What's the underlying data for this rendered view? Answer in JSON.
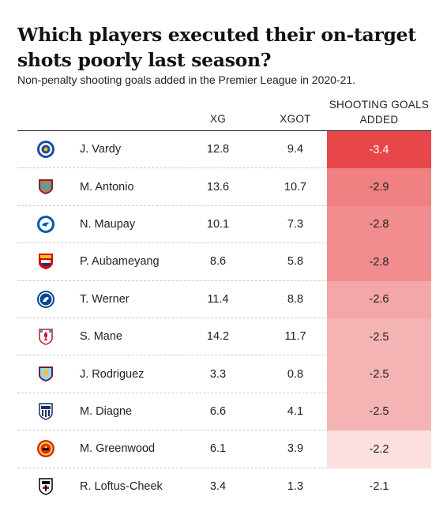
{
  "title": "Which players executed their on-target shots poorly last season?",
  "subtitle": "Non-penalty shooting goals added in the Premier League in 2020-21.",
  "columns": {
    "xg": "XG",
    "xgot": "XGOT",
    "sga": "SHOOTING GOALS ADDED"
  },
  "colors": {
    "scale_low": "#fdf3f2",
    "scale_high": "#e8474a"
  },
  "chart_data": {
    "type": "table",
    "title": "Which players executed their on-target shots poorly last season?",
    "subtitle": "Non-penalty shooting goals added in the Premier League in 2020-21.",
    "columns": [
      "XG",
      "XGOT",
      "SHOOTING GOALS ADDED"
    ],
    "rows": [
      {
        "player": "J. Vardy",
        "club_icon": "leicester-crest-icon",
        "xg": "12.8",
        "xgot": "9.4",
        "sga": "-3.4",
        "sga_value": -3.4
      },
      {
        "player": "M. Antonio",
        "club_icon": "west-ham-crest-icon",
        "xg": "13.6",
        "xgot": "10.7",
        "sga": "-2.9",
        "sga_value": -2.9
      },
      {
        "player": "N. Maupay",
        "club_icon": "brighton-crest-icon",
        "xg": "10.1",
        "xgot": "7.3",
        "sga": "-2.8",
        "sga_value": -2.8
      },
      {
        "player": "P. Aubameyang",
        "club_icon": "arsenal-crest-icon",
        "xg": "8.6",
        "xgot": "5.8",
        "sga": "-2.8",
        "sga_value": -2.8
      },
      {
        "player": "T. Werner",
        "club_icon": "chelsea-crest-icon",
        "xg": "11.4",
        "xgot": "8.8",
        "sga": "-2.6",
        "sga_value": -2.6
      },
      {
        "player": "S. Mane",
        "club_icon": "liverpool-crest-icon",
        "xg": "14.2",
        "xgot": "11.7",
        "sga": "-2.5",
        "sga_value": -2.5
      },
      {
        "player": "J. Rodriguez",
        "club_icon": "burnley-crest-icon",
        "xg": "3.3",
        "xgot": "0.8",
        "sga": "-2.5",
        "sga_value": -2.5
      },
      {
        "player": "M. Diagne",
        "club_icon": "west-brom-crest-icon",
        "xg": "6.6",
        "xgot": "4.1",
        "sga": "-2.5",
        "sga_value": -2.5
      },
      {
        "player": "M. Greenwood",
        "club_icon": "man-united-crest-icon",
        "xg": "6.1",
        "xgot": "3.9",
        "sga": "-2.2",
        "sga_value": -2.2
      },
      {
        "player": "R. Loftus-Cheek",
        "club_icon": "fulham-crest-icon",
        "xg": "3.4",
        "xgot": "1.3",
        "sga": "-2.1",
        "sga_value": -2.1
      }
    ]
  }
}
